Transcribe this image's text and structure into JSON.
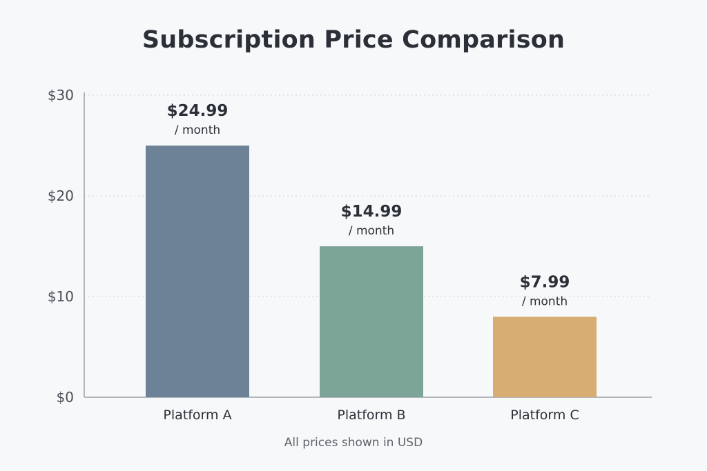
{
  "chart_data": {
    "type": "bar",
    "title": "Subscription Price Comparison",
    "categories": [
      "Platform A",
      "Platform B",
      "Platform C"
    ],
    "values": [
      24.99,
      14.99,
      7.99
    ],
    "value_labels": [
      "$24.99",
      "$14.99",
      "$7.99"
    ],
    "unit_label": "/ month",
    "colors": [
      "#6d8296",
      "#7ca497",
      "#d7ad73"
    ],
    "ylim": [
      0,
      30
    ],
    "yticks": [
      0,
      10,
      20,
      30
    ],
    "ytick_labels": [
      "$0",
      "$10",
      "$20",
      "$30"
    ],
    "grid": true,
    "xlabel": "",
    "ylabel": "",
    "footnote": "All prices shown in USD"
  }
}
